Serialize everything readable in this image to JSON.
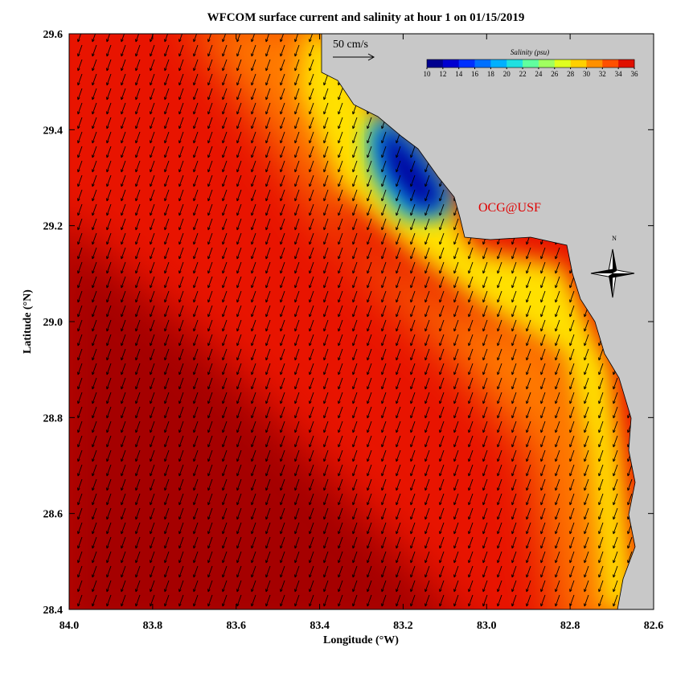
{
  "chart_data": {
    "type": "map",
    "title": "WFCOM surface current and salinity at hour 1 on 01/15/2019",
    "x_label": "Longitude (°W)",
    "y_label": "Latitude (°N)",
    "xlim": [
      84,
      82.6
    ],
    "ylim": [
      28.4,
      29.6
    ],
    "xticks": [
      {
        "value": 84,
        "label": "84.0"
      },
      83.8,
      83.6,
      83.4,
      83.2,
      {
        "value": 83,
        "label": "83.0"
      },
      82.8,
      82.6
    ],
    "yticks": [
      28.4,
      28.6,
      28.8,
      {
        "value": 29,
        "label": "29.0"
      },
      29.2,
      29.4,
      29.6
    ],
    "colorbar": {
      "label": "Salinity (psu)",
      "lim": [
        10,
        36
      ],
      "ticks": [
        10,
        12,
        14,
        16,
        18,
        20,
        22,
        24,
        26,
        28,
        30,
        32,
        34,
        36
      ],
      "colors": [
        "#00008f",
        "#0000d0",
        "#0030ff",
        "#0070ff",
        "#00b0ff",
        "#20e0e0",
        "#60ff9f",
        "#a0ff60",
        "#e0ff20",
        "#ffd000",
        "#ff9000",
        "#ff5000",
        "#e01000"
      ]
    },
    "scale_arrow": "50 cm/s",
    "annotation": "OCG@USF",
    "compass": "N"
  }
}
